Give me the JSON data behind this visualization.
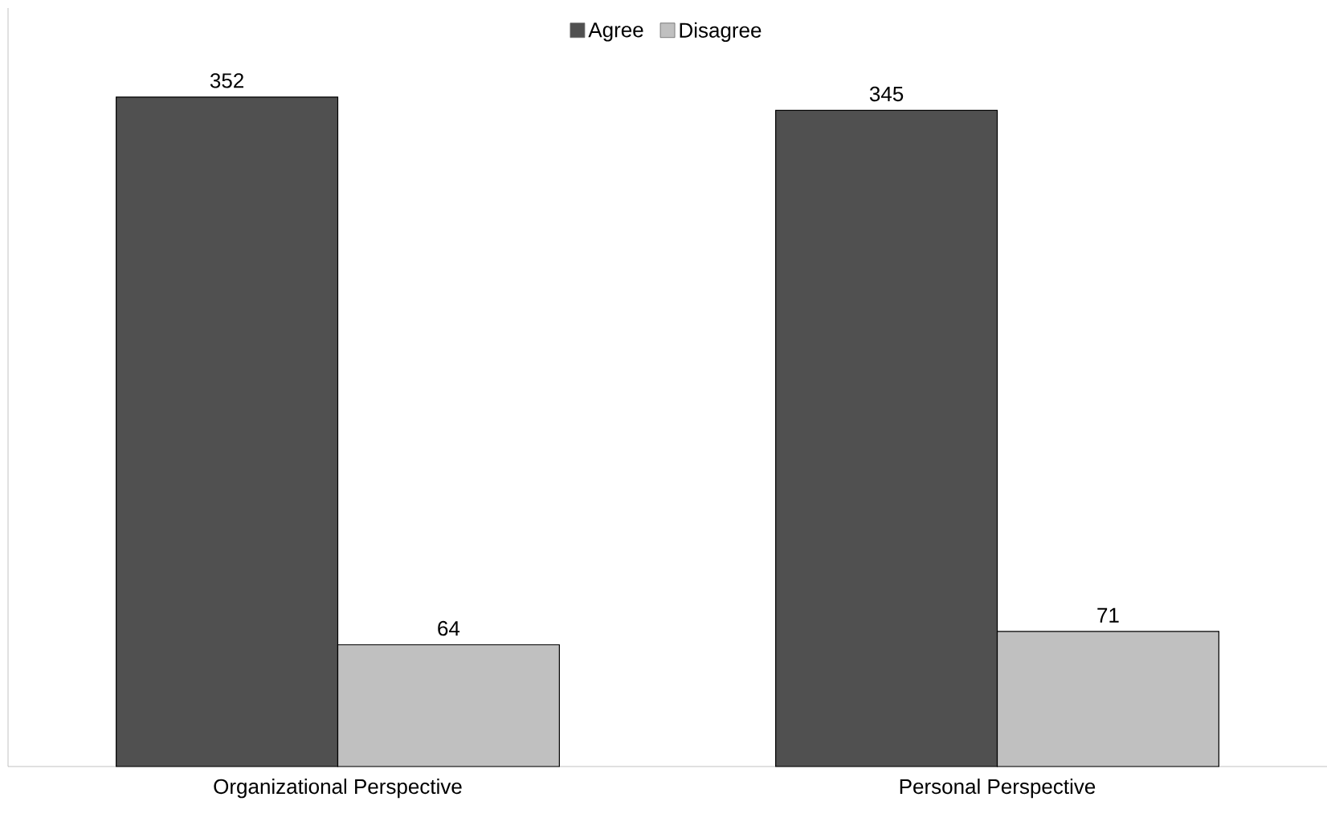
{
  "chart_data": {
    "type": "bar",
    "categories": [
      "Organizational Perspective",
      "Personal Perspective"
    ],
    "series": [
      {
        "name": "Agree",
        "color": "#505050",
        "values": [
          352,
          345
        ]
      },
      {
        "name": "Disagree",
        "color": "#c0c0c0",
        "values": [
          64,
          71
        ]
      }
    ],
    "data_labels": true,
    "legend": "top"
  }
}
